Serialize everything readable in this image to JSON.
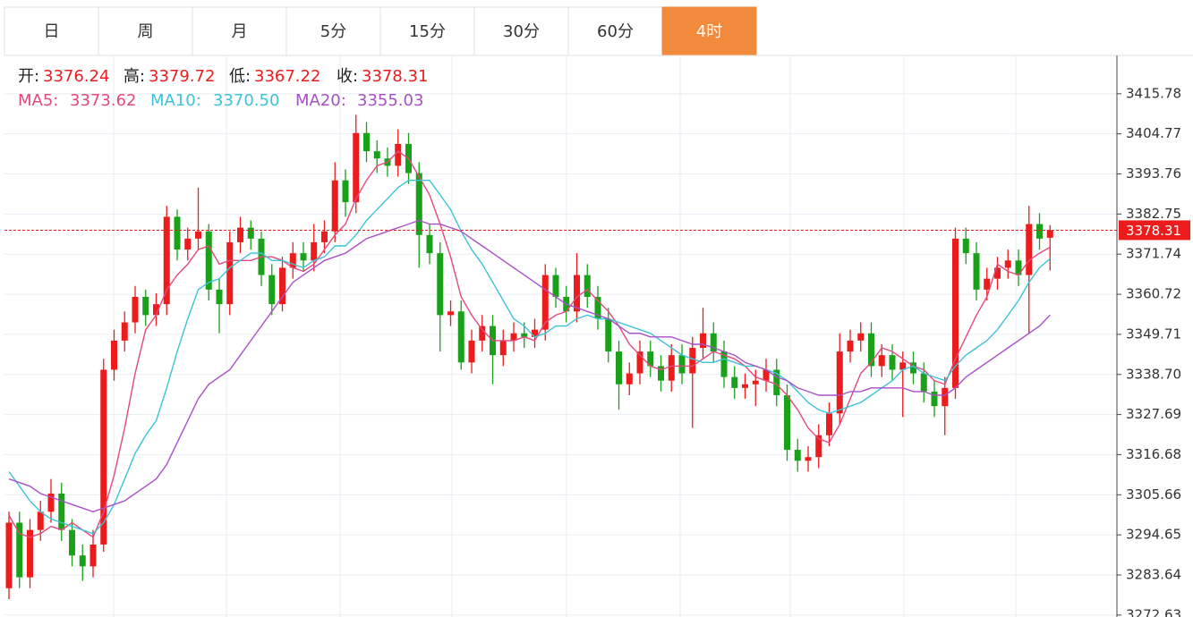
{
  "tabs": {
    "items": [
      "日",
      "周",
      "月",
      "5分",
      "15分",
      "30分",
      "60分",
      "4时"
    ],
    "active": 7
  },
  "chart_data": {
    "type": "candlestick",
    "info_labels": [
      "开:",
      "高:",
      "低:",
      "收:"
    ],
    "up_color": "#ec1c1c",
    "down_color": "#19a119",
    "open": [
      3280,
      3298,
      3283,
      3296,
      3301,
      3306,
      3296,
      3289,
      3286,
      3292,
      3340,
      3348,
      3353,
      3360,
      3355,
      3358,
      3382,
      3373,
      3376,
      3378,
      3362,
      3358,
      3375,
      3379,
      3376,
      3366,
      3358,
      3368,
      3372,
      3370,
      3375,
      3378,
      3392,
      3386,
      3405,
      3400,
      3398,
      3396,
      3402,
      3394,
      3377,
      3372,
      3355,
      3356,
      3342,
      3348,
      3352,
      3344,
      3348,
      3350,
      3349,
      3351,
      3366,
      3360,
      3356,
      3366,
      3360,
      3354,
      3345,
      3336,
      3339,
      3345,
      3341,
      3337,
      3344,
      3339,
      3346,
      3350,
      3345,
      3338,
      3335,
      3336,
      3337,
      3340,
      3333,
      3318,
      3315,
      3316,
      3322,
      3328,
      3345,
      3348,
      3350,
      3341,
      3344,
      3340,
      3342,
      3339,
      3334,
      3330,
      3335,
      3376,
      3372,
      3362,
      3365,
      3368,
      3370,
      3366,
      3380,
      3376.24
    ],
    "high": [
      3301,
      3301,
      3299,
      3304,
      3310,
      3309,
      3299,
      3292,
      3296,
      3343,
      3351,
      3356,
      3363,
      3362,
      3361,
      3385,
      3384,
      3379,
      3390,
      3380,
      3365,
      3378,
      3382,
      3381,
      3378,
      3369,
      3371,
      3375,
      3375,
      3380,
      3381,
      3397,
      3395,
      3410,
      3408,
      3403,
      3401,
      3406,
      3405,
      3397,
      3380,
      3375,
      3359,
      3359,
      3351,
      3355,
      3355,
      3351,
      3353,
      3353,
      3354,
      3369,
      3368,
      3363,
      3372,
      3369,
      3363,
      3357,
      3348,
      3342,
      3348,
      3348,
      3344,
      3347,
      3347,
      3349,
      3357,
      3353,
      3348,
      3341,
      3339,
      3340,
      3343,
      3343,
      3336,
      3321,
      3319,
      3325,
      3331,
      3350,
      3351,
      3353,
      3353,
      3347,
      3347,
      3345,
      3345,
      3342,
      3337,
      3338,
      3379,
      3379,
      3375,
      3368,
      3371,
      3373,
      3373,
      3385,
      3383,
      3379.72
    ],
    "low": [
      3277,
      3280,
      3280,
      3293,
      3298,
      3293,
      3286,
      3282,
      3283,
      3290,
      3337,
      3345,
      3350,
      3352,
      3352,
      3355,
      3370,
      3370,
      3373,
      3359,
      3350,
      3355,
      3372,
      3373,
      3363,
      3355,
      3356,
      3365,
      3367,
      3367,
      3372,
      3375,
      3382,
      3383,
      3397,
      3394,
      3393,
      3393,
      3391,
      3368,
      3369,
      3345,
      3352,
      3340,
      3339,
      3345,
      3336,
      3341,
      3345,
      3346,
      3346,
      3348,
      3357,
      3353,
      3353,
      3357,
      3351,
      3342,
      3329,
      3333,
      3336,
      3338,
      3334,
      3334,
      3336,
      3324,
      3343,
      3342,
      3335,
      3332,
      3332,
      3330,
      3334,
      3330,
      3315,
      3312,
      3312,
      3313,
      3319,
      3325,
      3342,
      3345,
      3338,
      3338,
      3337,
      3327,
      3336,
      3331,
      3327,
      3322,
      3332,
      3369,
      3359,
      3359,
      3362,
      3365,
      3363,
      3350,
      3373,
      3367.22
    ],
    "close": [
      3298,
      3283,
      3296,
      3301,
      3306,
      3296,
      3289,
      3286,
      3292,
      3340,
      3348,
      3353,
      3360,
      3355,
      3358,
      3382,
      3373,
      3376,
      3378,
      3362,
      3358,
      3375,
      3379,
      3376,
      3366,
      3358,
      3368,
      3372,
      3370,
      3375,
      3378,
      3392,
      3386,
      3405,
      3400,
      3398,
      3396,
      3402,
      3394,
      3377,
      3372,
      3355,
      3356,
      3342,
      3348,
      3352,
      3344,
      3348,
      3350,
      3349,
      3351,
      3366,
      3360,
      3356,
      3366,
      3360,
      3354,
      3345,
      3336,
      3339,
      3345,
      3341,
      3337,
      3344,
      3339,
      3346,
      3350,
      3345,
      3338,
      3335,
      3336,
      3337,
      3340,
      3333,
      3318,
      3315,
      3316,
      3322,
      3328,
      3345,
      3348,
      3350,
      3341,
      3344,
      3340,
      3342,
      3339,
      3334,
      3330,
      3335,
      3376,
      3372,
      3362,
      3365,
      3368,
      3370,
      3366,
      3380,
      3376,
      3378.31
    ],
    "series": [
      {
        "name": "MA5:",
        "color": "#e4487e",
        "values": [
          3300,
          3295,
          3294,
          3295,
          3297,
          3296,
          3298,
          3296,
          3294,
          3301,
          3311,
          3324,
          3339,
          3351,
          3355,
          3362,
          3366,
          3369,
          3373,
          3374,
          3369,
          3370,
          3370,
          3370,
          3371,
          3371,
          3370,
          3368,
          3367,
          3369,
          3373,
          3377,
          3380,
          3387,
          3392,
          3396,
          3397,
          3400,
          3398,
          3393,
          3388,
          3380,
          3371,
          3360,
          3355,
          3351,
          3348,
          3348,
          3348,
          3349,
          3348,
          3353,
          3355,
          3356,
          3360,
          3362,
          3359,
          3356,
          3352,
          3347,
          3344,
          3341,
          3340,
          3341,
          3341,
          3341,
          3343,
          3345,
          3344,
          3343,
          3341,
          3338,
          3337,
          3336,
          3333,
          3329,
          3324,
          3321,
          3320,
          3325,
          3332,
          3339,
          3342,
          3346,
          3345,
          3343,
          3341,
          3340,
          3337,
          3336,
          3343,
          3349,
          3355,
          3360,
          3369,
          3367,
          3366,
          3370,
          3372,
          3373.62
        ]
      },
      {
        "name": "MA10:",
        "color": "#3cc3d8",
        "values": [
          3312,
          3308,
          3304,
          3301,
          3299,
          3298,
          3297,
          3296,
          3295,
          3298,
          3303,
          3310,
          3317,
          3322,
          3326,
          3335,
          3345,
          3354,
          3362,
          3364,
          3365,
          3368,
          3370,
          3372,
          3372,
          3370,
          3370,
          3369,
          3368,
          3370,
          3371,
          3374,
          3374,
          3377,
          3381,
          3384,
          3387,
          3390,
          3392,
          3392,
          3392,
          3388,
          3384,
          3378,
          3373,
          3369,
          3364,
          3359,
          3354,
          3352,
          3349,
          3350,
          3352,
          3352,
          3354,
          3355,
          3354,
          3354,
          3353,
          3352,
          3351,
          3350,
          3348,
          3346,
          3344,
          3343,
          3342,
          3342,
          3343,
          3342,
          3341,
          3341,
          3340,
          3339,
          3337,
          3334,
          3331,
          3329,
          3328,
          3329,
          3330,
          3331,
          3333,
          3335,
          3337,
          3340,
          3341,
          3339,
          3338,
          3337,
          3341,
          3344,
          3346,
          3348,
          3351,
          3355,
          3359,
          3364,
          3368,
          3370.5
        ],
        "value_labels": [
          null,
          null,
          null,
          null,
          null,
          null,
          null,
          null,
          null,
          null,
          null,
          null,
          null,
          null,
          null,
          null,
          null,
          null,
          null,
          null,
          null,
          null,
          null,
          null,
          null,
          null,
          null,
          null,
          null,
          null,
          null,
          null,
          null,
          null,
          null,
          null,
          null,
          null,
          null,
          null,
          null,
          null,
          null,
          null,
          null,
          null,
          null,
          null,
          null,
          null,
          null,
          null,
          null,
          null,
          null,
          null,
          null,
          null,
          null,
          null,
          null,
          null,
          null,
          null,
          null,
          null,
          null,
          null,
          null,
          null,
          null,
          null,
          null,
          null,
          null,
          null,
          null,
          null,
          null,
          null,
          null,
          null,
          null,
          null,
          null,
          null,
          null,
          null,
          null,
          null,
          null,
          null,
          null,
          null,
          null,
          null,
          null,
          null,
          null,
          "3370.50"
        ]
      },
      {
        "name": "MA20:",
        "color": "#a94fc6",
        "values": [
          3310,
          3309,
          3308,
          3306,
          3305,
          3304,
          3303,
          3302,
          3301,
          3302,
          3303,
          3304,
          3306,
          3308,
          3310,
          3314,
          3320,
          3326,
          3332,
          3336,
          3338,
          3340,
          3344,
          3348,
          3352,
          3356,
          3360,
          3364,
          3366,
          3368,
          3370,
          3371,
          3372,
          3374,
          3376,
          3377,
          3378,
          3379,
          3380,
          3381,
          3380,
          3380,
          3379,
          3378,
          3376,
          3374,
          3372,
          3370,
          3368,
          3366,
          3364,
          3362,
          3360,
          3358,
          3357,
          3356,
          3355,
          3354,
          3352,
          3350,
          3350,
          3349,
          3349,
          3349,
          3348,
          3347,
          3347,
          3346,
          3345,
          3344,
          3342,
          3341,
          3340,
          3338,
          3337,
          3335,
          3334,
          3333,
          3333,
          3333,
          3334,
          3334,
          3335,
          3335,
          3335,
          3335,
          3334,
          3334,
          3333,
          3333,
          3335,
          3338,
          3340,
          3342,
          3344,
          3346,
          3348,
          3350,
          3352,
          3355.03
        ]
      }
    ],
    "ylim": [
      3272.1,
      3426.3
    ],
    "yticks": [
      3415.78,
      3404.77,
      3393.76,
      3382.75,
      3371.74,
      3360.72,
      3349.71,
      {
        "value": 3338.7,
        "label": "3338.70"
      },
      3327.69,
      3316.68,
      3305.66,
      3294.65,
      3283.64,
      3272.63
    ],
    "grid": true
  }
}
